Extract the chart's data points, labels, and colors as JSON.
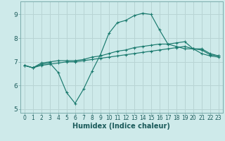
{
  "xlabel": "Humidex (Indice chaleur)",
  "background_color": "#ceeaea",
  "grid_color": "#b8d4d4",
  "line_color": "#1a7a6e",
  "xlim": [
    -0.5,
    23.5
  ],
  "ylim": [
    4.85,
    9.55
  ],
  "yticks": [
    5,
    6,
    7,
    8,
    9
  ],
  "xticks": [
    0,
    1,
    2,
    3,
    4,
    5,
    6,
    7,
    8,
    9,
    10,
    11,
    12,
    13,
    14,
    15,
    16,
    17,
    18,
    19,
    20,
    21,
    22,
    23
  ],
  "line1_x": [
    0,
    1,
    2,
    3,
    4,
    5,
    6,
    7,
    8,
    9,
    10,
    11,
    12,
    13,
    14,
    15,
    16,
    17,
    18,
    19,
    20,
    21,
    22,
    23
  ],
  "line1_y": [
    6.85,
    6.75,
    6.9,
    6.95,
    6.55,
    5.7,
    5.25,
    5.85,
    6.6,
    7.3,
    8.2,
    8.65,
    8.75,
    8.95,
    9.05,
    9.0,
    8.35,
    7.75,
    7.65,
    7.55,
    7.55,
    7.35,
    7.25,
    7.2
  ],
  "line2_x": [
    0,
    1,
    2,
    3,
    4,
    5,
    6,
    7,
    8,
    9,
    10,
    11,
    12,
    13,
    14,
    15,
    16,
    17,
    18,
    19,
    20,
    21,
    22,
    23
  ],
  "line2_y": [
    6.85,
    6.75,
    6.95,
    7.0,
    7.05,
    7.05,
    7.05,
    7.1,
    7.2,
    7.25,
    7.35,
    7.45,
    7.5,
    7.6,
    7.65,
    7.7,
    7.75,
    7.75,
    7.8,
    7.85,
    7.55,
    7.55,
    7.35,
    7.25
  ],
  "line3_x": [
    0,
    1,
    2,
    3,
    4,
    5,
    6,
    7,
    8,
    9,
    10,
    11,
    12,
    13,
    14,
    15,
    16,
    17,
    18,
    19,
    20,
    21,
    22,
    23
  ],
  "line3_y": [
    6.85,
    6.75,
    6.85,
    6.9,
    6.95,
    7.0,
    7.0,
    7.05,
    7.1,
    7.15,
    7.2,
    7.25,
    7.3,
    7.35,
    7.4,
    7.45,
    7.5,
    7.55,
    7.6,
    7.65,
    7.55,
    7.5,
    7.3,
    7.25
  ]
}
